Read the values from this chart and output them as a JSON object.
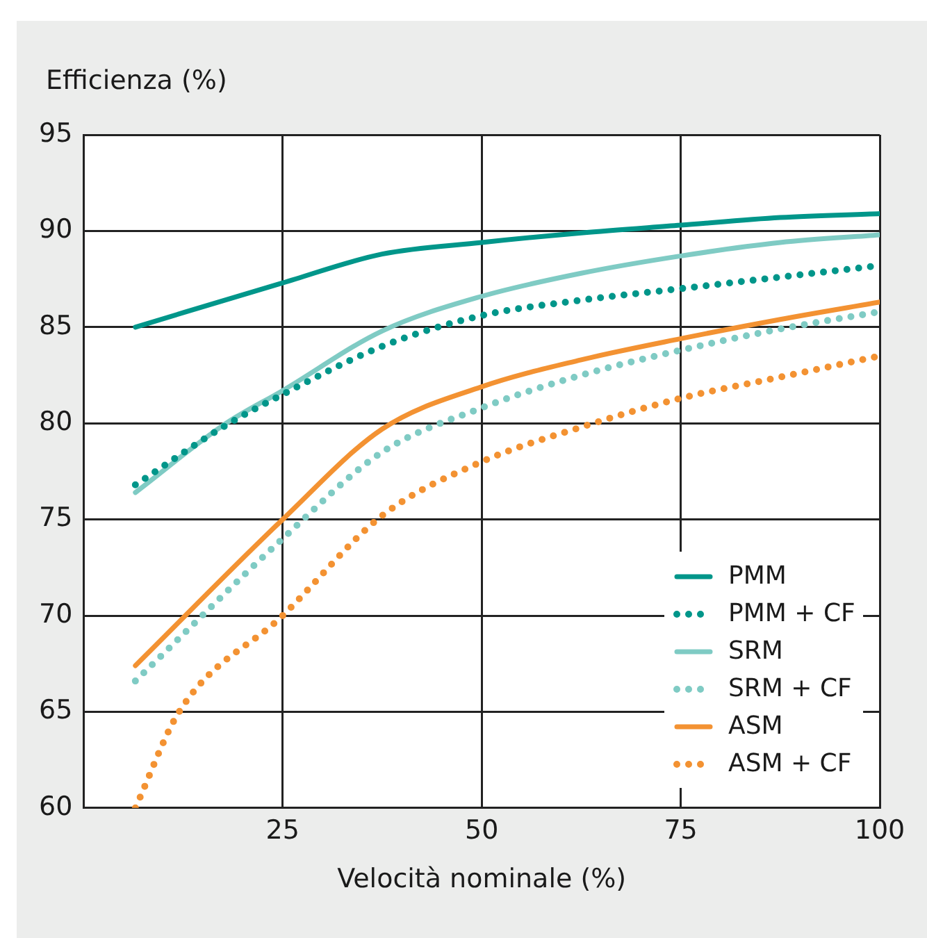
{
  "chart_data": {
    "type": "line",
    "ylabel": "Efficienza (%)",
    "xlabel": "Velocità nominale (%)",
    "xlim": [
      0,
      100
    ],
    "xticks": [
      {
        "value": 0,
        "label": null
      },
      25,
      50,
      75,
      100
    ],
    "ylim": [
      60,
      95
    ],
    "yticks": [
      60,
      65,
      70,
      75,
      80,
      85,
      90,
      95
    ],
    "grid": true,
    "legend": "bottom right",
    "marker": "none",
    "series": [
      {
        "name": "PMM",
        "color": "#00968a",
        "line_style": "solid",
        "x": [
          6.5,
          25,
          37.5,
          50,
          62.5,
          75,
          87.5,
          100
        ],
        "values": [
          85,
          87.3,
          88.8,
          89.4,
          89.9,
          90.3,
          90.7,
          90.9
        ]
      },
      {
        "name": "PMM + CF",
        "color": "#00968a",
        "line_style": "dotted",
        "x": [
          6.5,
          17.9,
          25,
          37.5,
          50,
          62.5,
          75,
          87.5,
          100
        ],
        "values": [
          76.8,
          79.9,
          81.5,
          84,
          85.6,
          86.4,
          87,
          87.6,
          88.2
        ]
      },
      {
        "name": "SRM",
        "color": "#7fcbc4",
        "line_style": "solid",
        "x": [
          6.5,
          17.9,
          25,
          37.5,
          50,
          62.5,
          75,
          87.5,
          100
        ],
        "values": [
          76.4,
          80,
          81.7,
          84.8,
          86.6,
          87.8,
          88.7,
          89.4,
          89.8
        ]
      },
      {
        "name": "SRM + CF",
        "color": "#7fcbc4",
        "line_style": "dotted",
        "x": [
          6.5,
          25,
          37.5,
          50,
          62.5,
          75,
          87.5,
          100
        ],
        "values": [
          66.6,
          74,
          78.5,
          80.8,
          82.5,
          83.8,
          84.9,
          85.8
        ]
      },
      {
        "name": "ASM",
        "color": "#f39232",
        "line_style": "solid",
        "x": [
          6.5,
          25,
          37.5,
          50,
          62.5,
          75,
          87.5,
          100
        ],
        "values": [
          67.4,
          75,
          79.7,
          81.9,
          83.3,
          84.4,
          85.4,
          86.3
        ]
      },
      {
        "name": "ASM + CF",
        "color": "#f39232",
        "line_style": "dotted",
        "x": [
          6.5,
          12,
          25,
          37.5,
          50,
          62.5,
          75,
          87.5,
          100
        ],
        "values": [
          60,
          65,
          70,
          75.2,
          78,
          79.8,
          81.3,
          82.4,
          83.5
        ]
      }
    ]
  }
}
